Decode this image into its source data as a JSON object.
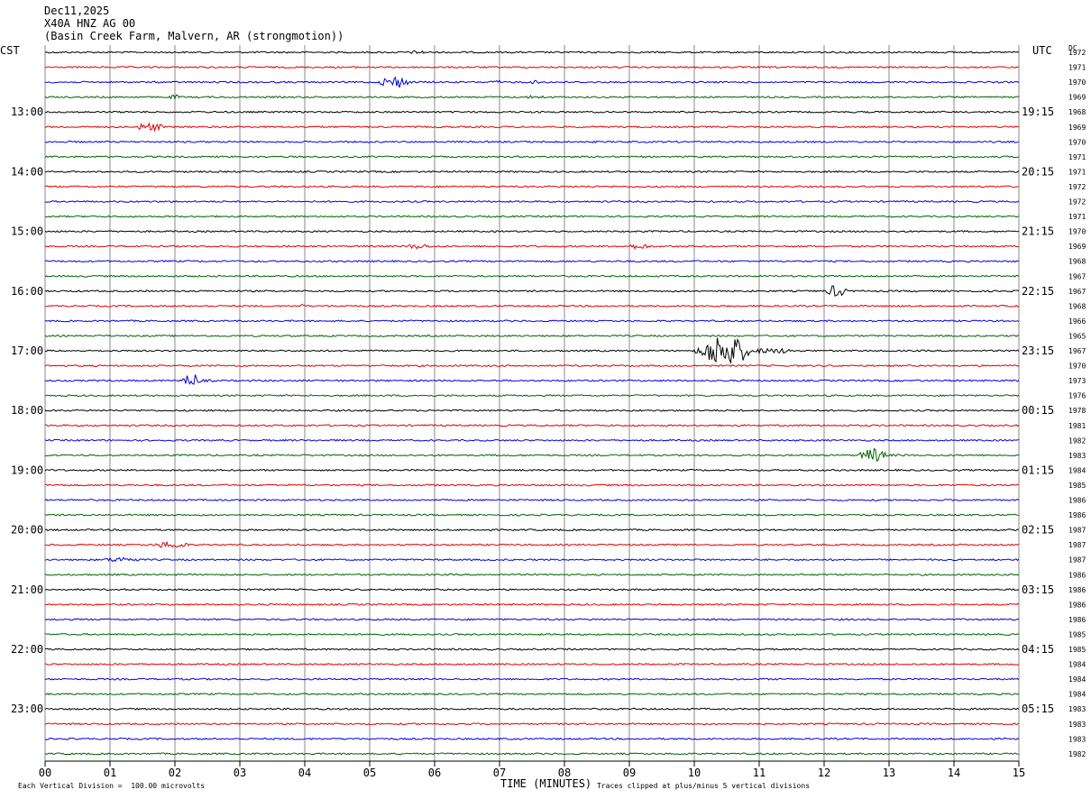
{
  "header": {
    "date": "Dec11,2025",
    "station": "X40A HNZ AG 00",
    "location": "(Basin Creek Farm, Malvern, AR (strongmotion))"
  },
  "left_tz": "CST",
  "right_tz": "UTC",
  "dc_label": "DC",
  "footer": {
    "xlabel": "TIME (MINUTES)",
    "scale_note": "Each Vertical Division =  100.00 microvolts",
    "clip_note": "Traces clipped at plus/minus 5 vertical divisions"
  },
  "colors": {
    "trace_cycle": [
      "#000000",
      "#e00000",
      "#0000e0",
      "#006400"
    ],
    "grid": "#8a8a8a"
  },
  "chart_data": {
    "type": "line",
    "title": "X40A HNZ AG 00",
    "xlabel": "TIME (MINUTES)",
    "xlim": [
      0,
      15
    ],
    "x_ticks": [
      "00",
      "01",
      "02",
      "03",
      "04",
      "05",
      "06",
      "07",
      "08",
      "09",
      "10",
      "11",
      "12",
      "13",
      "14",
      "15"
    ],
    "left_time_labels": [
      {
        "row": 4,
        "text": "13:00"
      },
      {
        "row": 8,
        "text": "14:00"
      },
      {
        "row": 12,
        "text": "15:00"
      },
      {
        "row": 16,
        "text": "16:00"
      },
      {
        "row": 20,
        "text": "17:00"
      },
      {
        "row": 24,
        "text": "18:00"
      },
      {
        "row": 28,
        "text": "19:00"
      },
      {
        "row": 32,
        "text": "20:00"
      },
      {
        "row": 36,
        "text": "21:00"
      },
      {
        "row": 40,
        "text": "22:00"
      },
      {
        "row": 44,
        "text": "23:00"
      }
    ],
    "right_time_labels": [
      {
        "row": 4,
        "text": "19:15"
      },
      {
        "row": 8,
        "text": "20:15"
      },
      {
        "row": 12,
        "text": "21:15"
      },
      {
        "row": 16,
        "text": "22:15"
      },
      {
        "row": 20,
        "text": "23:15"
      },
      {
        "row": 24,
        "text": "00:15"
      },
      {
        "row": 28,
        "text": "01:15"
      },
      {
        "row": 32,
        "text": "02:15"
      },
      {
        "row": 36,
        "text": "03:15"
      },
      {
        "row": 40,
        "text": "04:15"
      },
      {
        "row": 44,
        "text": "05:15"
      }
    ],
    "dc_offsets": [
      1972,
      1971,
      1970,
      1969,
      1968,
      1969,
      1970,
      1971,
      1971,
      1972,
      1972,
      1971,
      1970,
      1969,
      1968,
      1967,
      1967,
      1968,
      1966,
      1965,
      1967,
      1970,
      1973,
      1976,
      1978,
      1981,
      1982,
      1983,
      1984,
      1985,
      1986,
      1986,
      1987,
      1987,
      1987,
      1986,
      1986,
      1986,
      1986,
      1985,
      1985,
      1984,
      1984,
      1984,
      1983,
      1983,
      1983,
      1982
    ],
    "row_count": 48,
    "events": [
      {
        "row": 0,
        "start": 5.5,
        "end": 6.3,
        "amp": 2
      },
      {
        "row": 2,
        "start": 5.1,
        "end": 6.0,
        "amp": 7
      },
      {
        "row": 2,
        "start": 6.8,
        "end": 7.3,
        "amp": 2
      },
      {
        "row": 2,
        "start": 7.4,
        "end": 7.9,
        "amp": 2
      },
      {
        "row": 3,
        "start": 1.9,
        "end": 2.2,
        "amp": 3
      },
      {
        "row": 3,
        "start": 7.3,
        "end": 8.1,
        "amp": 2
      },
      {
        "row": 5,
        "start": 1.35,
        "end": 2.2,
        "amp": 5
      },
      {
        "row": 13,
        "start": 5.5,
        "end": 6.3,
        "amp": 3
      },
      {
        "row": 13,
        "start": 8.9,
        "end": 9.7,
        "amp": 3
      },
      {
        "row": 16,
        "start": 12.0,
        "end": 12.6,
        "amp": 7
      },
      {
        "row": 17,
        "start": 3.9,
        "end": 4.1,
        "amp": 2
      },
      {
        "row": 20,
        "start": 10.0,
        "end": 11.5,
        "amp": 18
      },
      {
        "row": 22,
        "start": 2.1,
        "end": 2.6,
        "amp": 9
      },
      {
        "row": 22,
        "start": 13.4,
        "end": 13.5,
        "amp": 3
      },
      {
        "row": 27,
        "start": 12.5,
        "end": 13.3,
        "amp": 8
      },
      {
        "row": 33,
        "start": 1.6,
        "end": 2.7,
        "amp": 4
      },
      {
        "row": 34,
        "start": 0.8,
        "end": 2.0,
        "amp": 3
      }
    ]
  }
}
